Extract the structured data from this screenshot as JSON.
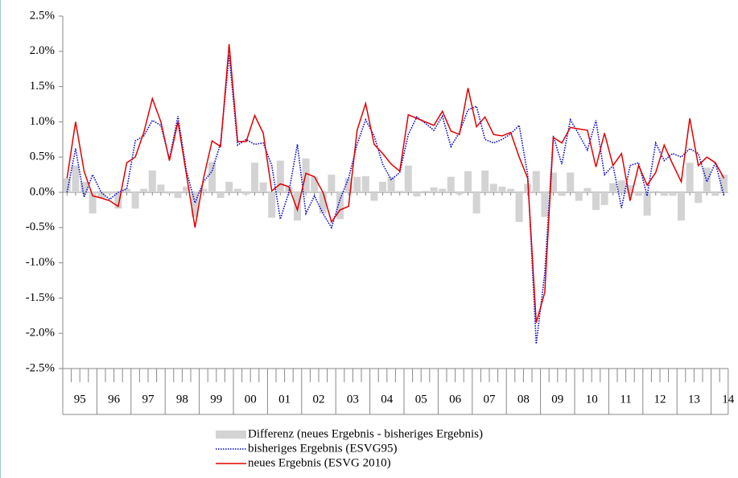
{
  "chart_data": {
    "type": "combo",
    "categories": [
      null,
      "95",
      null,
      null,
      null,
      "96",
      null,
      null,
      null,
      "97",
      null,
      null,
      null,
      "98",
      null,
      null,
      null,
      "99",
      null,
      null,
      null,
      "00",
      null,
      null,
      null,
      "01",
      null,
      null,
      null,
      "02",
      null,
      null,
      null,
      "03",
      null,
      null,
      null,
      "04",
      null,
      null,
      null,
      "05",
      null,
      null,
      null,
      "06",
      null,
      null,
      null,
      "07",
      null,
      null,
      null,
      "08",
      null,
      null,
      null,
      "09",
      null,
      null,
      null,
      "10",
      null,
      null,
      null,
      "11",
      null,
      null,
      null,
      "12",
      null,
      null,
      null,
      "13",
      null,
      null,
      null,
      "14"
    ],
    "series": [
      {
        "name": "Differenz (neues Ergebnis - bisheriges Ergebnis)",
        "type": "bar",
        "color": "#d3d3d3",
        "values": [
          0.2,
          0.38,
          0.15,
          -0.3,
          -0.08,
          -0.02,
          -0.23,
          0.05,
          -0.23,
          0.05,
          0.31,
          0.11,
          -0.02,
          -0.08,
          0.08,
          -0.35,
          0.05,
          0.43,
          -0.08,
          0.15,
          0.05,
          -0.03,
          0.42,
          0.14,
          -0.36,
          0.45,
          0.08,
          -0.4,
          0.48,
          0.22,
          -0.3,
          0.25,
          -0.38,
          0.2,
          0.22,
          0.23,
          -0.12,
          0.15,
          0.22,
          0.02,
          0.38,
          -0.06,
          0.02,
          0.07,
          0.05,
          0.22,
          -0.03,
          0.3,
          -0.3,
          0.31,
          0.12,
          0.08,
          0.05,
          -0.42,
          0.12,
          0.3,
          -0.35,
          0.28,
          -0.05,
          0.28,
          -0.12,
          0.06,
          -0.25,
          -0.18,
          0.13,
          0.17,
          0.1,
          -0.05,
          -0.33,
          0.02,
          -0.05,
          -0.05,
          -0.4,
          0.42,
          -0.15,
          0.35,
          -0.05,
          0.25
        ]
      },
      {
        "name": "bisheriges Ergebnis (ESVG95)",
        "type": "line",
        "dash": "dotted",
        "color": "#0000cc",
        "values": [
          0.0,
          0.62,
          -0.07,
          0.25,
          0.0,
          -0.1,
          0.0,
          0.05,
          0.73,
          0.8,
          1.02,
          0.95,
          0.47,
          1.08,
          0.3,
          -0.15,
          0.15,
          0.3,
          0.7,
          1.95,
          0.67,
          0.75,
          0.68,
          0.7,
          0.38,
          -0.38,
          0.0,
          0.68,
          -0.3,
          -0.05,
          -0.3,
          -0.5,
          -0.1,
          0.2,
          0.68,
          1.03,
          0.8,
          0.4,
          0.18,
          0.28,
          0.82,
          1.07,
          0.98,
          0.88,
          1.08,
          0.65,
          0.85,
          1.17,
          1.22,
          0.75,
          0.7,
          0.75,
          0.83,
          0.95,
          0.25,
          -2.15,
          -1.15,
          0.8,
          0.4,
          1.03,
          0.82,
          0.6,
          1.02,
          0.25,
          0.38,
          -0.22,
          0.38,
          0.42,
          -0.05,
          0.7,
          0.45,
          0.55,
          0.5,
          0.62,
          0.55,
          0.15,
          0.42,
          -0.05
        ]
      },
      {
        "name": "neues Ergebnis (ESVG 2010)",
        "type": "line",
        "dash": "solid",
        "color": "#e00000",
        "values": [
          0.2,
          1.0,
          0.3,
          -0.05,
          -0.08,
          -0.12,
          -0.2,
          0.42,
          0.5,
          0.85,
          1.33,
          1.0,
          0.45,
          1.0,
          0.25,
          -0.5,
          0.2,
          0.73,
          0.65,
          2.1,
          0.72,
          0.72,
          1.09,
          0.84,
          0.02,
          0.12,
          0.08,
          -0.25,
          0.27,
          0.22,
          0.0,
          -0.42,
          -0.25,
          -0.2,
          0.88,
          1.26,
          0.68,
          0.55,
          0.4,
          0.3,
          1.1,
          1.05,
          1.0,
          0.95,
          1.15,
          0.87,
          0.82,
          1.48,
          0.93,
          1.07,
          0.82,
          0.8,
          0.85,
          0.5,
          0.2,
          -1.85,
          -1.42,
          0.78,
          0.7,
          0.92,
          0.9,
          0.88,
          0.36,
          0.84,
          0.38,
          0.55,
          -0.12,
          0.38,
          0.1,
          0.28,
          0.67,
          0.4,
          0.15,
          1.05,
          0.38,
          0.5,
          0.42,
          0.2
        ]
      }
    ],
    "ylim": [
      -2.5,
      2.5
    ],
    "yticks": [
      {
        "value": -2.5,
        "label": "-2.5%"
      },
      {
        "value": -2.0,
        "label": "-2.0%"
      },
      {
        "value": -1.5,
        "label": "-1.5%"
      },
      {
        "value": -1.0,
        "label": "-1.0%"
      },
      {
        "value": -0.5,
        "label": "-0.5%"
      },
      {
        "value": 0,
        "label": "0.0%"
      },
      {
        "value": 0.5,
        "label": "0.5%"
      },
      {
        "value": 1.0,
        "label": "1.0%"
      },
      {
        "value": 1.5,
        "label": "1.5%"
      },
      {
        "value": 2.0,
        "label": "2.0%"
      },
      {
        "value": 2.5,
        "label": "2.5%"
      }
    ],
    "grid": false
  }
}
